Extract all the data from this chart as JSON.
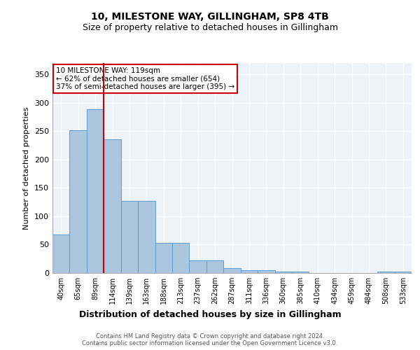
{
  "title1": "10, MILESTONE WAY, GILLINGHAM, SP8 4TB",
  "title2": "Size of property relative to detached houses in Gillingham",
  "xlabel": "Distribution of detached houses by size in Gillingham",
  "ylabel": "Number of detached properties",
  "categories": [
    "40sqm",
    "65sqm",
    "89sqm",
    "114sqm",
    "139sqm",
    "163sqm",
    "188sqm",
    "213sqm",
    "237sqm",
    "262sqm",
    "287sqm",
    "311sqm",
    "336sqm",
    "360sqm",
    "385sqm",
    "410sqm",
    "434sqm",
    "459sqm",
    "484sqm",
    "508sqm",
    "533sqm"
  ],
  "values": [
    68,
    251,
    288,
    236,
    127,
    127,
    53,
    53,
    22,
    22,
    9,
    5,
    5,
    3,
    3,
    0,
    0,
    0,
    0,
    3,
    3
  ],
  "bar_color": "#adc6e0",
  "bar_edge_color": "#5b9bd5",
  "background_color": "#eef3f9",
  "grid_color": "#ffffff",
  "vline_x": 2.5,
  "vline_color": "#cc0000",
  "annotation_box_text": "10 MILESTONE WAY: 119sqm\n← 62% of detached houses are smaller (654)\n37% of semi-detached houses are larger (395) →",
  "annotation_box_color": "#cc0000",
  "annotation_box_fill": "#ffffff",
  "footer": "Contains HM Land Registry data © Crown copyright and database right 2024.\nContains public sector information licensed under the Open Government Licence v3.0.",
  "ylim": [
    0,
    370
  ],
  "yticks": [
    0,
    50,
    100,
    150,
    200,
    250,
    300,
    350
  ]
}
